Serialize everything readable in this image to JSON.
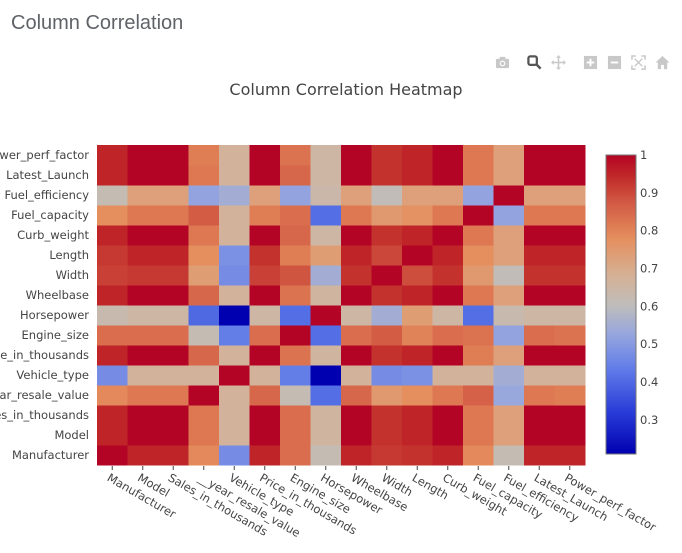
{
  "page": {
    "title": "Column Correlation"
  },
  "modebar": {
    "buttons": [
      {
        "name": "camera-icon",
        "label": "Download plot as a png"
      },
      {
        "name": "zoom-icon",
        "label": "Zoom",
        "active": true
      },
      {
        "name": "pan-icon",
        "label": "Pan"
      },
      {
        "name": "zoom-in-icon",
        "label": "Zoom in"
      },
      {
        "name": "zoom-out-icon",
        "label": "Zoom out"
      },
      {
        "name": "autoscale-icon",
        "label": "Autoscale"
      },
      {
        "name": "home-icon",
        "label": "Reset axes"
      }
    ]
  },
  "colors": {
    "low": "#0000b0",
    "mid": "#c0bdba",
    "high": "#b40426",
    "text": "#444444"
  },
  "chart_data": {
    "type": "heatmap",
    "title": "Column Correlation Heatmap",
    "xlabel": "",
    "ylabel": "",
    "x_ticklabels": [
      "Manufacturer",
      "Model",
      "Sales_in_thousands",
      "__year_resale_value",
      "Vehicle_type",
      "Price_in_thousands",
      "Engine_size",
      "Horsepower",
      "Wheelbase",
      "Width",
      "Length",
      "Curb_weight",
      "Fuel_capacity",
      "Fuel_efficiency",
      "Latest_Launch",
      "Power_perf_factor"
    ],
    "y_ticklabels_bottom_to_top": [
      "Manufacturer",
      "Model",
      "Sales_in_thousands",
      "__year_resale_value",
      "Vehicle_type",
      "Price_in_thousands",
      "Engine_size",
      "Horsepower",
      "Wheelbase",
      "Width",
      "Length",
      "Curb_weight",
      "Fuel_capacity",
      "Fuel_efficiency",
      "Latest_Launch",
      "Power_perf_factor"
    ],
    "z_rows_bottom_to_top": [
      [
        1.0,
        0.95,
        0.95,
        0.79,
        0.47,
        0.95,
        0.84,
        0.62,
        0.95,
        0.92,
        0.93,
        0.95,
        0.79,
        0.62,
        0.95,
        0.95
      ],
      [
        0.95,
        1.0,
        1.0,
        0.82,
        0.67,
        1.0,
        0.84,
        0.66,
        1.0,
        0.93,
        0.95,
        1.0,
        0.82,
        0.73,
        1.0,
        1.0
      ],
      [
        0.95,
        1.0,
        1.0,
        0.82,
        0.67,
        1.0,
        0.84,
        0.66,
        1.0,
        0.93,
        0.95,
        1.0,
        0.82,
        0.73,
        1.0,
        1.0
      ],
      [
        0.79,
        0.82,
        0.82,
        1.0,
        0.67,
        0.85,
        0.62,
        0.41,
        0.85,
        0.75,
        0.78,
        0.82,
        0.86,
        0.53,
        0.82,
        0.81
      ],
      [
        0.47,
        0.67,
        0.67,
        0.67,
        1.0,
        0.67,
        0.44,
        0.21,
        0.67,
        0.47,
        0.48,
        0.67,
        0.67,
        0.55,
        0.67,
        0.67
      ],
      [
        0.95,
        1.0,
        1.0,
        0.85,
        0.67,
        1.0,
        0.83,
        0.66,
        1.0,
        0.93,
        0.95,
        1.0,
        0.81,
        0.73,
        1.0,
        1.0
      ],
      [
        0.84,
        0.84,
        0.84,
        0.62,
        0.44,
        0.84,
        1.0,
        0.41,
        0.84,
        0.87,
        0.8,
        0.84,
        0.83,
        0.52,
        0.84,
        0.83
      ],
      [
        0.63,
        0.65,
        0.65,
        0.4,
        0.21,
        0.65,
        0.41,
        1.0,
        0.65,
        0.55,
        0.74,
        0.65,
        0.41,
        0.63,
        0.65,
        0.65
      ],
      [
        0.95,
        1.0,
        1.0,
        0.85,
        0.67,
        1.0,
        0.83,
        0.66,
        1.0,
        0.93,
        0.95,
        1.0,
        0.82,
        0.73,
        1.0,
        1.0
      ],
      [
        0.91,
        0.92,
        0.92,
        0.74,
        0.47,
        0.91,
        0.88,
        0.55,
        0.93,
        1.0,
        0.89,
        0.93,
        0.75,
        0.61,
        0.93,
        0.93
      ],
      [
        0.92,
        0.95,
        0.95,
        0.78,
        0.48,
        0.93,
        0.81,
        0.74,
        0.95,
        0.9,
        1.0,
        0.95,
        0.78,
        0.73,
        0.95,
        0.95
      ],
      [
        0.95,
        1.0,
        1.0,
        0.82,
        0.67,
        1.0,
        0.85,
        0.65,
        1.0,
        0.93,
        0.95,
        1.0,
        0.82,
        0.73,
        1.0,
        1.0
      ],
      [
        0.78,
        0.82,
        0.82,
        0.87,
        0.67,
        0.81,
        0.84,
        0.41,
        0.82,
        0.75,
        0.77,
        0.82,
        1.0,
        0.52,
        0.82,
        0.82
      ],
      [
        0.62,
        0.73,
        0.73,
        0.52,
        0.55,
        0.73,
        0.52,
        0.64,
        0.73,
        0.61,
        0.73,
        0.73,
        0.52,
        1.0,
        0.73,
        0.73
      ],
      [
        0.95,
        1.0,
        1.0,
        0.82,
        0.67,
        1.0,
        0.85,
        0.65,
        1.0,
        0.93,
        0.95,
        1.0,
        0.82,
        0.73,
        1.0,
        1.0
      ],
      [
        0.95,
        1.0,
        1.0,
        0.81,
        0.67,
        1.0,
        0.83,
        0.65,
        1.0,
        0.93,
        0.95,
        1.0,
        0.82,
        0.73,
        1.0,
        1.0
      ]
    ],
    "zrange": [
      0.21,
      1.0
    ],
    "colorscale": "coolwarm",
    "colorbar": {
      "ticks": [
        0.3,
        0.4,
        0.5,
        0.6,
        0.7,
        0.8,
        0.9,
        1
      ],
      "tick_labels": [
        "0.3",
        "0.4",
        "0.5",
        "0.6",
        "0.7",
        "0.8",
        "0.9",
        "1"
      ],
      "placement": "right"
    },
    "grid": false
  }
}
